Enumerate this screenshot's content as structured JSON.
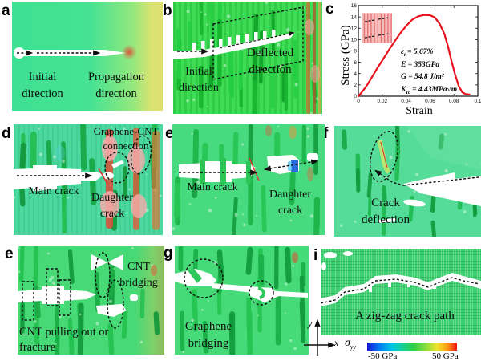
{
  "panels": {
    "a": {
      "letter": "a",
      "labels": {
        "initial_direction": "Initial direction",
        "propagation_direction": "Propagation direction"
      }
    },
    "b": {
      "letter": "b",
      "labels": {
        "initial_direction": "Initial direction",
        "deflected_direction": "Deflected direction"
      }
    },
    "c": {
      "letter": "c"
    },
    "d": {
      "letter": "d",
      "labels": {
        "main_crack": "Main crack",
        "daughter_crack": "Daughter crack",
        "graphene_cnt_connection": "Graphene-CNT connection"
      }
    },
    "e_mid": {
      "letter": "e",
      "labels": {
        "main_crack": "Main crack",
        "daughter_crack": "Daughter crack"
      }
    },
    "f": {
      "letter": "f",
      "labels": {
        "crack_deflection": "Crack deflection"
      }
    },
    "e_bottom": {
      "letter": "e",
      "labels": {
        "cnt_bridging": "CNT bridging",
        "cnt_pulling_out": "CNT pulling out or fracture"
      }
    },
    "g": {
      "letter": "g",
      "labels": {
        "graphene_bridging": "Graphene bridging"
      }
    },
    "i": {
      "letter": "i",
      "labels": {
        "zigzag_path": "A zig-zag crack path"
      }
    }
  },
  "colorbar": {
    "quantity_base": "σ",
    "quantity_sub": "yy",
    "min_label": "-50 GPa",
    "max_label": "50 GPa",
    "min_color": "#1515d6",
    "max_color": "#e81414"
  },
  "axes_glyph": {
    "x_label": "x",
    "y_label": "y"
  },
  "colors": {
    "crack": "#ffffff",
    "matrix_green": "#45da85",
    "cnt_green": "#1cb448",
    "high_stress_red": "#de4a36",
    "curve_red": "#e8101c"
  },
  "chart_data": {
    "type": "line",
    "title": "",
    "xlabel": "Strain",
    "ylabel": "Stress (GPa)",
    "xlim": [
      0,
      0.1
    ],
    "ylim": [
      0,
      16
    ],
    "grid": false,
    "xtick_labels": [
      "0",
      "0.02",
      "0.04",
      "0.06",
      "0.08",
      "0.1"
    ],
    "ytick_labels": [
      "0",
      "2",
      "4",
      "6",
      "8",
      "10",
      "12",
      "14",
      "16"
    ],
    "series": [
      {
        "name": "stress-strain curve",
        "color": "#e8101c",
        "x": [
          0,
          0.004,
          0.008,
          0.012,
          0.016,
          0.02,
          0.025,
          0.03,
          0.035,
          0.04,
          0.045,
          0.05,
          0.055,
          0.06,
          0.064,
          0.068,
          0.072,
          0.075,
          0.078,
          0.081,
          0.084,
          0.087,
          0.09,
          0.093
        ],
        "y": [
          0,
          1.0,
          2.2,
          3.6,
          5.0,
          6.3,
          8.0,
          9.6,
          11.1,
          12.4,
          13.5,
          14.1,
          14.35,
          14.3,
          13.9,
          12.8,
          11.0,
          8.8,
          6.2,
          3.8,
          1.8,
          0.7,
          0.35,
          0.3
        ]
      }
    ],
    "annotations": [
      {
        "base": "ε",
        "sub": "t",
        "rest": " = 5.67%"
      },
      {
        "base": "E",
        "sub": "",
        "rest": " = 353GPa"
      },
      {
        "base": "G",
        "sub": "",
        "rest": " = 54.8 J/m²"
      },
      {
        "base": "K",
        "sub": "Ic",
        "rest": " = 4.43MPa√m"
      }
    ]
  }
}
